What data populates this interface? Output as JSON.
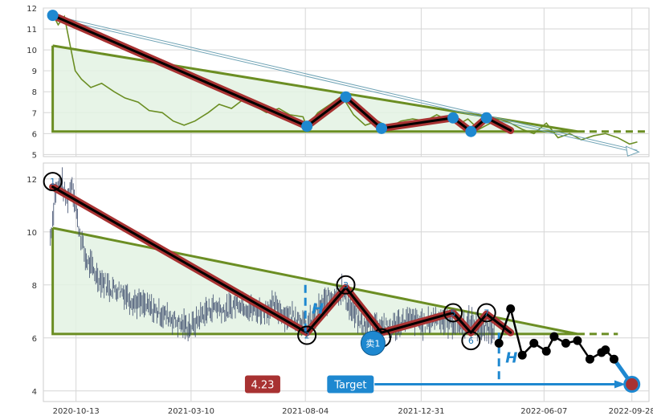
{
  "colors": {
    "price_top": "#6b8e23",
    "price_bottom": "#3b4a6b",
    "triangle": "#6b8e23",
    "triangle_fill": "#e3f2e3",
    "wave_outer": "#a83232",
    "wave_inner": "#000000",
    "marker": "#1e88d0",
    "grid": "#d6d6d6",
    "target_bg": "#1e88d0",
    "value_bg": "#a83232"
  },
  "chart_data": [
    {
      "type": "line",
      "panel": "top",
      "x_range": [
        "2020-09-01",
        "2022-10-20"
      ],
      "ylim": [
        4.9,
        12
      ],
      "yticks": [
        5,
        6,
        7,
        8,
        9,
        10,
        11,
        12
      ],
      "grid": true,
      "series": [
        {
          "style": "price-line",
          "x": [
            "2020-09-13",
            "2020-09-20",
            "2020-09-28",
            "2020-10-05",
            "2020-10-12",
            "2020-10-20",
            "2020-11-01",
            "2020-11-15",
            "2020-12-01",
            "2020-12-15",
            "2021-01-01",
            "2021-01-15",
            "2021-02-01",
            "2021-02-15",
            "2021-03-01",
            "2021-03-15",
            "2021-04-01",
            "2021-04-15",
            "2021-05-01",
            "2021-05-15",
            "2021-06-01",
            "2021-06-15",
            "2021-07-01",
            "2021-07-15",
            "2021-08-01",
            "2021-08-06",
            "2021-08-20",
            "2021-09-05",
            "2021-09-20",
            "2021-10-05",
            "2021-10-20",
            "2021-11-05",
            "2021-11-20",
            "2021-12-05",
            "2021-12-20",
            "2022-01-05",
            "2022-01-20",
            "2022-02-05",
            "2022-02-20",
            "2022-03-01",
            "2022-03-15",
            "2022-03-25",
            "2022-04-10",
            "2022-04-25",
            "2022-05-10",
            "2022-05-25",
            "2022-06-10",
            "2022-06-25",
            "2022-07-10",
            "2022-07-25",
            "2022-08-10",
            "2022-08-25",
            "2022-09-10",
            "2022-09-25",
            "2022-10-05"
          ],
          "y": [
            11.7,
            11.2,
            11.6,
            10.3,
            9.0,
            8.6,
            8.2,
            8.4,
            8.0,
            7.7,
            7.5,
            7.1,
            7.0,
            6.6,
            6.4,
            6.6,
            7.0,
            7.4,
            7.2,
            7.6,
            7.3,
            7.0,
            7.2,
            6.9,
            6.8,
            6.3,
            7.0,
            7.4,
            7.8,
            6.9,
            6.4,
            6.6,
            6.3,
            6.6,
            6.7,
            6.6,
            6.9,
            6.6,
            6.5,
            6.7,
            6.2,
            6.4,
            6.7,
            6.5,
            6.2,
            6.0,
            6.5,
            5.8,
            6.0,
            5.7,
            5.9,
            6.0,
            5.8,
            5.5,
            5.6
          ]
        },
        {
          "style": "wave",
          "x": [
            "2020-09-13",
            "2021-08-06",
            "2021-09-25",
            "2021-11-10",
            "2022-02-10",
            "2022-03-05",
            "2022-03-25",
            "2022-04-25"
          ],
          "y": [
            11.65,
            6.35,
            7.75,
            6.25,
            6.75,
            6.1,
            6.75,
            6.15
          ]
        },
        {
          "style": "markers",
          "x": [
            "2020-09-13",
            "2021-08-06",
            "2021-09-25",
            "2021-11-10",
            "2022-02-10",
            "2022-03-05",
            "2022-03-25"
          ],
          "y": [
            11.65,
            6.35,
            7.75,
            6.25,
            6.75,
            6.1,
            6.75
          ]
        },
        {
          "style": "triangle",
          "x": [
            "2020-09-13",
            "2020-09-13",
            "2022-07-20"
          ],
          "y": [
            10.2,
            6.1,
            6.1
          ],
          "apex_y": 6.1
        },
        {
          "style": "dashed-extension",
          "x": [
            "2022-07-20",
            "2022-10-15"
          ],
          "y": [
            6.1,
            6.1
          ]
        },
        {
          "style": "trend-arrow",
          "x": [
            "2020-09-13",
            "2022-10-05"
          ],
          "y": [
            11.65,
            5.2
          ]
        }
      ]
    },
    {
      "type": "line",
      "panel": "bottom",
      "x_range": [
        "2020-09-01",
        "2022-10-20"
      ],
      "xticks": [
        "2020-10-13",
        "2021-03-10",
        "2021-08-04",
        "2021-12-31",
        "2022-06-07",
        "2022-09-28"
      ],
      "ylim": [
        3.6,
        12.6
      ],
      "yticks": [
        4,
        6,
        8,
        10,
        12
      ],
      "grid": true,
      "series": [
        {
          "style": "price-bars",
          "x": [
            "2020-09-10",
            "2020-09-17",
            "2020-09-24",
            "2020-10-01",
            "2020-10-08",
            "2020-10-15",
            "2020-10-25",
            "2020-11-10",
            "2020-11-25",
            "2020-12-10",
            "2020-12-25",
            "2021-01-10",
            "2021-01-25",
            "2021-02-10",
            "2021-02-25",
            "2021-03-10",
            "2021-03-25",
            "2021-04-10",
            "2021-04-25",
            "2021-05-10",
            "2021-05-25",
            "2021-06-10",
            "2021-06-25",
            "2021-07-10",
            "2021-07-25",
            "2021-08-06",
            "2021-08-20",
            "2021-09-05",
            "2021-09-20",
            "2021-10-05",
            "2021-10-20",
            "2021-11-05",
            "2021-11-20",
            "2021-12-05",
            "2021-12-20",
            "2022-01-05",
            "2022-01-20",
            "2022-02-05",
            "2022-02-20",
            "2022-03-05",
            "2022-03-20",
            "2022-04-05"
          ],
          "y": [
            9.8,
            11.6,
            11.9,
            11.2,
            11.9,
            10.4,
            9.0,
            8.3,
            7.9,
            7.8,
            7.4,
            7.2,
            7.0,
            6.8,
            6.5,
            6.4,
            6.9,
            7.2,
            7.0,
            7.4,
            7.1,
            7.0,
            7.2,
            6.9,
            6.8,
            6.4,
            7.0,
            7.6,
            7.8,
            6.9,
            6.4,
            6.6,
            6.3,
            6.6,
            6.7,
            6.5,
            6.8,
            6.6,
            6.5,
            6.6,
            6.3,
            6.4
          ]
        },
        {
          "style": "wave",
          "x": [
            "2020-09-13",
            "2021-08-06",
            "2021-09-25",
            "2021-11-10",
            "2022-02-10",
            "2022-03-05",
            "2022-03-25",
            "2022-04-25"
          ],
          "y": [
            11.7,
            6.2,
            7.9,
            6.2,
            6.95,
            6.2,
            6.9,
            6.2
          ]
        },
        {
          "style": "wave-labels",
          "labels": [
            "1",
            "2",
            "3",
            "4",
            "5",
            "6",
            "7"
          ],
          "x": [
            "2020-09-13",
            "2021-08-06",
            "2021-09-25",
            "2021-11-10",
            "2022-02-10",
            "2022-03-05",
            "2022-03-25"
          ],
          "y": [
            11.9,
            6.1,
            8.0,
            6.0,
            6.95,
            5.9,
            6.95
          ]
        },
        {
          "style": "projection",
          "x": [
            "2022-04-10",
            "2022-04-25",
            "2022-05-10",
            "2022-05-25",
            "2022-06-10",
            "2022-06-20",
            "2022-07-05",
            "2022-07-20",
            "2022-08-05",
            "2022-08-20",
            "2022-08-25",
            "2022-09-05",
            "2022-09-28"
          ],
          "y": [
            5.8,
            7.1,
            5.35,
            5.8,
            5.5,
            6.05,
            5.8,
            5.9,
            5.2,
            5.45,
            5.55,
            5.2,
            4.25
          ]
        },
        {
          "style": "triangle",
          "x": [
            "2020-09-13",
            "2020-09-13",
            "2022-07-20"
          ],
          "y": [
            10.15,
            6.15,
            6.15
          ],
          "apex_y": 6.15
        },
        {
          "style": "dashed-extension",
          "x": [
            "2022-07-20",
            "2022-09-10"
          ],
          "y": [
            6.15,
            6.15
          ]
        },
        {
          "style": "sell-marker",
          "label": "卖1",
          "x": [
            "2021-10-30"
          ],
          "y": [
            5.8
          ]
        },
        {
          "style": "height-markers",
          "label": "H",
          "x": [
            "2021-08-04",
            "2022-04-10"
          ],
          "y1": [
            8.0,
            6.2
          ],
          "y2": [
            6.2,
            4.3
          ]
        },
        {
          "style": "target-arrow",
          "x": [
            "2021-11-01",
            "2022-09-20"
          ],
          "y": [
            4.25,
            4.25
          ],
          "target_value": 4.25
        }
      ],
      "annotations": {
        "value_box": "4.23",
        "target_box": "Target",
        "target_at": "2021-10-01"
      }
    }
  ]
}
